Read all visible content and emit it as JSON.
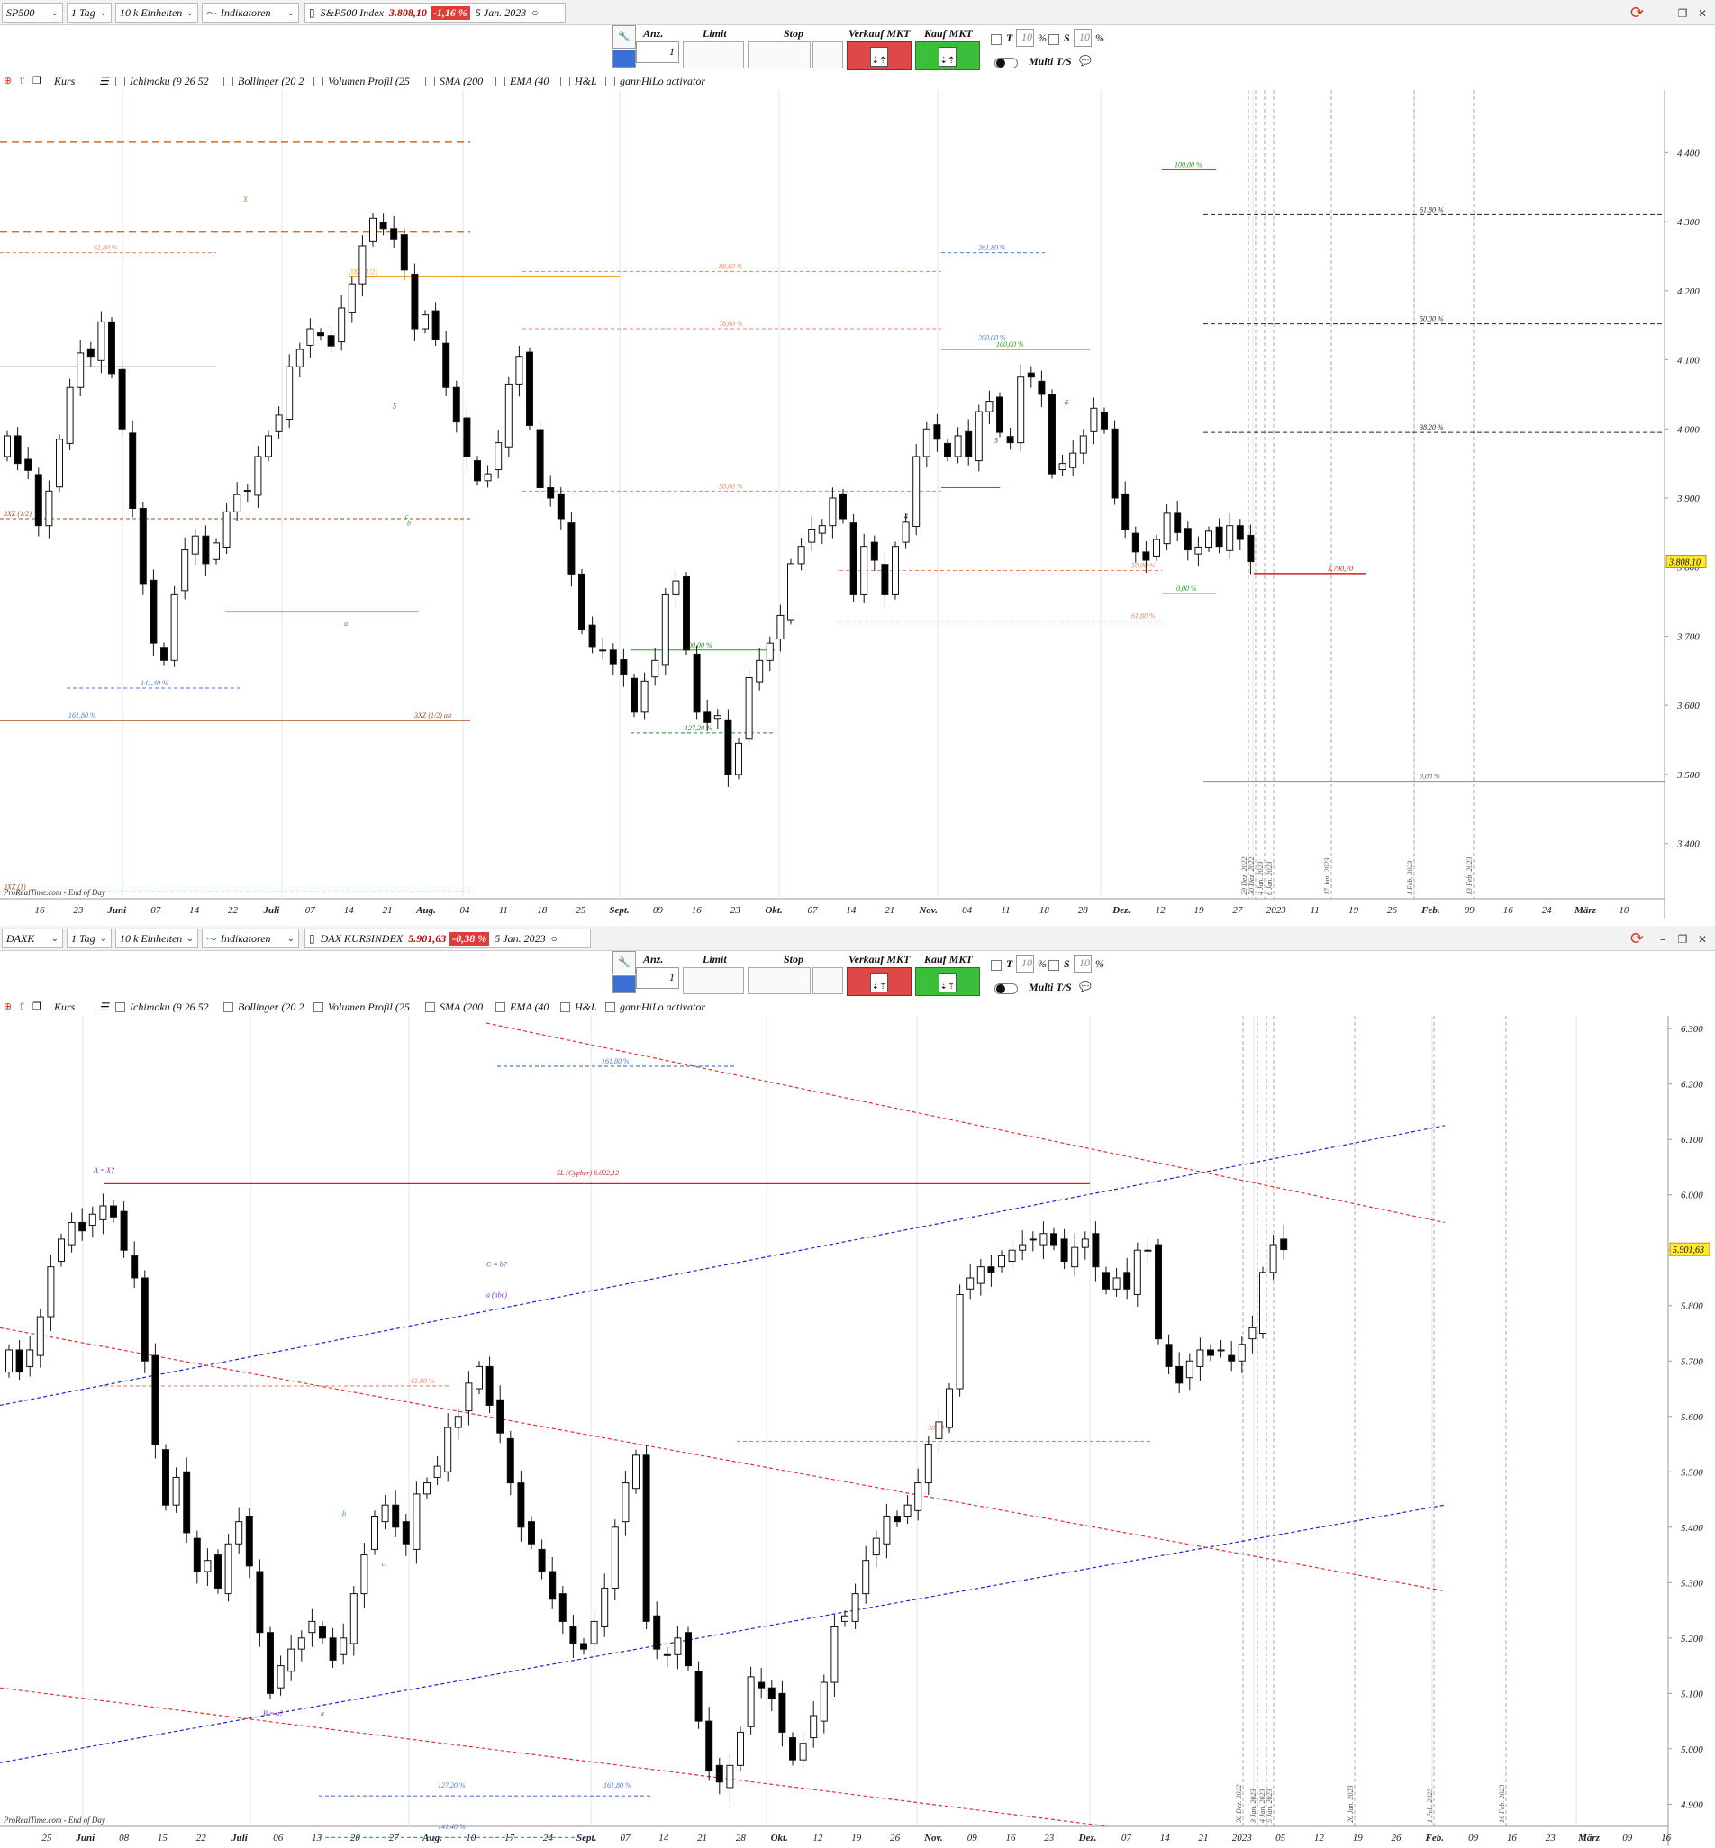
{
  "top": {
    "toolbar": {
      "symbol": "SP500",
      "interval": "1 Tag",
      "units": "10 k Einheiten",
      "indicators": "Indikatoren",
      "instrument": "S&P500 Index",
      "price": "3.808,10",
      "change": "-1,16 %",
      "date": "5 Jan. 2023"
    },
    "indicators": [
      "Kurs",
      "Ichimoku (9 26 52",
      "Bollinger (20 2",
      "Volumen Profil (25",
      "SMA (200",
      "EMA (40",
      "H&L",
      "gannHiLo activator"
    ],
    "copyright": "ProRealTime.com - End of Day",
    "price_tag": "3.808,10",
    "right_axis_labels": [
      "4.400",
      "4.300",
      "4.200",
      "4.100",
      "4.000",
      "3.900",
      "3.800",
      "3.700",
      "3.600",
      "3.500",
      "3.400"
    ],
    "date_axis_labels": [
      "16",
      "23",
      "Juni",
      "07",
      "14",
      "22",
      "Juli",
      "07",
      "14",
      "21",
      "Aug.",
      "04",
      "11",
      "18",
      "25",
      "Sept.",
      "09",
      "16",
      "23",
      "Okt.",
      "07",
      "14",
      "21",
      "Nov.",
      "04",
      "11",
      "18",
      "28",
      "Dez.",
      "12",
      "19",
      "27",
      "2023",
      "11",
      "19",
      "26",
      "Feb.",
      "09",
      "16",
      "24",
      "März",
      "10"
    ],
    "fib_labels": [
      "61,80 %",
      "50,00 %",
      "38,20 %",
      "0,00 %",
      "100,00 %",
      "61,80 %",
      "88,60 %",
      "78,60 %",
      "50,00 %",
      "261,80 %",
      "200,00 %",
      "100,00 %",
      "50,00 %",
      "61,80 %",
      "0,00 %",
      "100,00 %",
      "127,20 %",
      "141,40 %",
      "161,80 %",
      "3.790,70"
    ],
    "pattern_labels": [
      "X",
      "3XZ (1/2)",
      "3XZ (1/2)",
      "3XZ (1/2) alt",
      "3XZ (1)",
      "a",
      "b",
      "c",
      "3",
      "4",
      "5",
      "6"
    ],
    "vertical_dates": [
      "29 Dez. 2022",
      "30 Dez. 2022",
      "4 Jan. 2023",
      "6 Jan. 2023",
      "17 Jan. 2023",
      "1 Feb. 2023",
      "13 Feb. 2023"
    ]
  },
  "bottom": {
    "toolbar": {
      "symbol": "DAXK",
      "interval": "1 Tag",
      "units": "10 k Einheiten",
      "indicators": "Indikatoren",
      "instrument": "DAX KURSINDEX",
      "price": "5.901,63",
      "change": "-0,38 %",
      "date": "5 Jan. 2023"
    },
    "indicators": [
      "Kurs",
      "Ichimoku (9 26 52",
      "Bollinger (20 2",
      "Volumen Profil (25",
      "SMA (200",
      "EMA (40",
      "H&L",
      "gannHiLo activator"
    ],
    "copyright": "ProRealTime.com - End of Day",
    "price_tag": "5.901,63",
    "right_axis_labels": [
      "6.300",
      "6.200",
      "6.100",
      "6.000",
      "5.900",
      "5.800",
      "5.700",
      "5.600",
      "5.500",
      "5.400",
      "5.300",
      "5.200",
      "5.100",
      "5.000",
      "4.900"
    ],
    "date_axis_labels": [
      "25",
      "Juni",
      "08",
      "15",
      "22",
      "Juli",
      "06",
      "13",
      "20",
      "27",
      "Aug.",
      "10",
      "17",
      "24",
      "Sept.",
      "07",
      "14",
      "21",
      "28",
      "Okt.",
      "12",
      "19",
      "26",
      "Nov.",
      "09",
      "16",
      "23",
      "Dez.",
      "07",
      "14",
      "21",
      "2023",
      "05",
      "12",
      "19",
      "26",
      "Feb.",
      "09",
      "16",
      "23",
      "März",
      "09",
      "16"
    ],
    "fib_labels": [
      "161,80 %",
      "61,80 %",
      "38,20 %",
      "127,20 %",
      "161,80 %",
      "141,40 %",
      "200,00 %"
    ],
    "pattern_labels": [
      "A = X?",
      "5L (Cypher) 6.022,12",
      "C = b?",
      "a (abc)",
      "B = a?",
      "a",
      "b",
      "c",
      "d (abcd) = c (Cypher?)"
    ],
    "vertical_dates": [
      "30 Dez. 2022",
      "3 Jan. 2023",
      "4 Jan. 2023",
      "5 Jan. 2023",
      "20 Jan. 2023",
      "1 Feb. 2023",
      "16 Feb. 2023"
    ]
  },
  "order_bar": {
    "qty_label": "Anz.",
    "qty_value": "1",
    "limit_label": "Limit",
    "stop_label": "Stop",
    "sell_label": "Verkauf MKT",
    "buy_label": "Kauf MKT",
    "t_label": "T",
    "t_value": "10",
    "s_label": "S",
    "s_value": "10",
    "pct": "%",
    "multi_label": "Multi T/S"
  },
  "colors": {
    "up_candle": "#ffffff",
    "down_candle": "#000000",
    "fib_red": "#f08060",
    "fib_green": "#1a9a1a",
    "fib_blue": "#4a7ad8",
    "pattern_orange": "#e8a030",
    "channel_red": "#e03030",
    "channel_blue": "#2020d0",
    "price_tag_bg": "#ffe830"
  },
  "chart_data": [
    {
      "type": "candlestick",
      "title": "S&P500 Index",
      "ylim": [
        3320,
        4480
      ],
      "y_ticks": [
        3400,
        3500,
        3600,
        3700,
        3800,
        3900,
        4000,
        4100,
        4200,
        4300,
        4400
      ],
      "last_price": 3808.1,
      "closes": [
        3990,
        3950,
        3940,
        3860,
        3910,
        3985,
        4060,
        4110,
        4105,
        4155,
        4080,
        4000,
        3885,
        3775,
        3690,
        3665,
        3760,
        3825,
        3845,
        3805,
        3835,
        3880,
        3905,
        3910,
        3960,
        3990,
        4020,
        4090,
        4115,
        4145,
        4135,
        4120,
        4175,
        4210,
        4265,
        4305,
        4290,
        4275,
        4230,
        4145,
        4165,
        4130,
        4060,
        4010,
        3960,
        3925,
        3935,
        3980,
        4065,
        4105,
        4005,
        3915,
        3900,
        3870,
        3790,
        3710,
        3685,
        3680,
        3660,
        3645,
        3590,
        3635,
        3665,
        3760,
        3780,
        3680,
        3590,
        3575,
        3585,
        3500,
        3545,
        3640,
        3665,
        3690,
        3730,
        3805,
        3830,
        3855,
        3860,
        3900,
        3870,
        3760,
        3830,
        3810,
        3760,
        3830,
        3865,
        3960,
        4000,
        3985,
        3960,
        3990,
        3960,
        4025,
        4040,
        3995,
        3980,
        4075,
        4075,
        4050,
        3935,
        3950,
        3965,
        3990,
        4030,
        4000,
        3900,
        3855,
        3822,
        3810,
        3840,
        3878,
        3850,
        3825,
        3829,
        3852,
        3830,
        3860,
        3840,
        3808
      ]
    },
    {
      "type": "candlestick",
      "title": "DAX KURSINDEX",
      "ylim": [
        4860,
        6310
      ],
      "y_ticks": [
        4900,
        5000,
        5100,
        5200,
        5300,
        5400,
        5500,
        5600,
        5700,
        5800,
        5900,
        6000,
        6100,
        6200,
        6300
      ],
      "last_price": 5901.63,
      "closes": [
        5720,
        5680,
        5720,
        5780,
        5870,
        5920,
        5950,
        5935,
        5965,
        5980,
        5960,
        5900,
        5850,
        5700,
        5550,
        5440,
        5490,
        5390,
        5320,
        5340,
        5290,
        5370,
        5410,
        5330,
        5210,
        5100,
        5150,
        5180,
        5200,
        5230,
        5200,
        5160,
        5200,
        5280,
        5350,
        5420,
        5440,
        5400,
        5370,
        5460,
        5480,
        5510,
        5580,
        5600,
        5660,
        5690,
        5620,
        5570,
        5480,
        5400,
        5370,
        5320,
        5270,
        5230,
        5190,
        5180,
        5230,
        5290,
        5400,
        5480,
        5530,
        5230,
        5180,
        5170,
        5200,
        5150,
        5050,
        4960,
        4940,
        4970,
        5030,
        5130,
        5110,
        5090,
        5030,
        4980,
        5010,
        5060,
        5120,
        5220,
        5240,
        5280,
        5340,
        5380,
        5420,
        5410,
        5440,
        5480,
        5550,
        5590,
        5650,
        5820,
        5850,
        5870,
        5860,
        5890,
        5900,
        5910,
        5920,
        5930,
        5910,
        5880,
        5905,
        5920,
        5870,
        5830,
        5850,
        5830,
        5900,
        5900,
        5740,
        5690,
        5660,
        5700,
        5720,
        5710,
        5720,
        5700,
        5730,
        5760,
        5860,
        5910,
        5901
      ]
    }
  ]
}
